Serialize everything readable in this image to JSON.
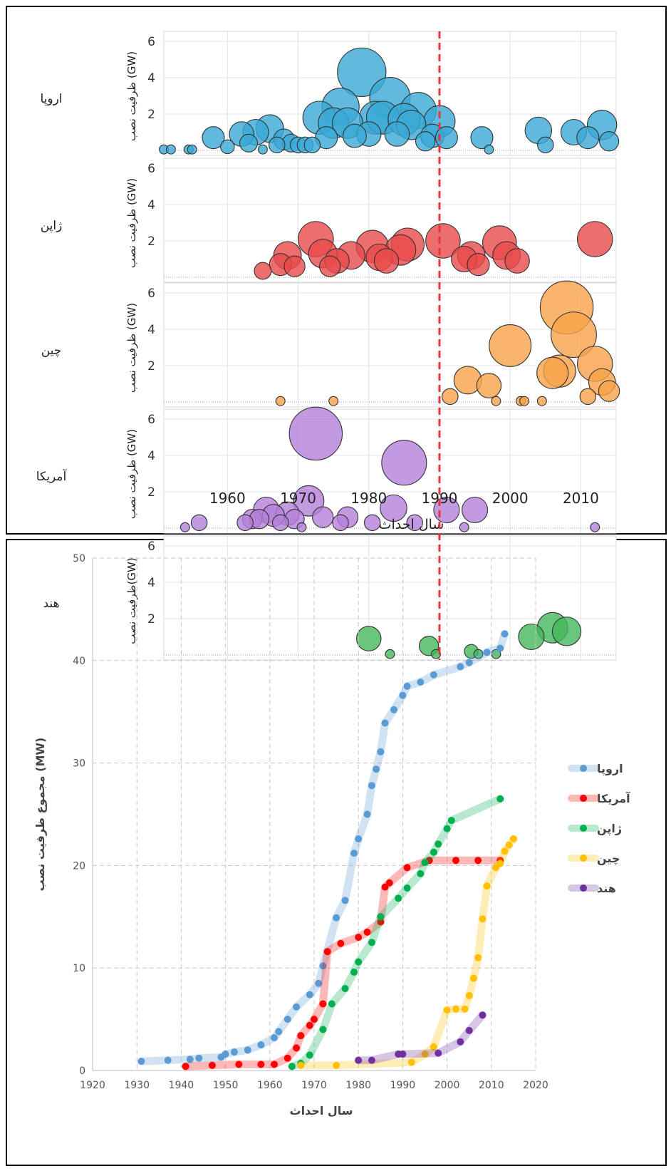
{
  "chart_data": [
    {
      "type": "scatter",
      "xlabel": "سال احداث",
      "x_ticks": [
        1960,
        1970,
        1980,
        1990,
        2000,
        2010
      ],
      "xlim": [
        1951,
        2015
      ],
      "ylim": [
        0,
        6.5
      ],
      "y_ticks": [
        2,
        4,
        6
      ],
      "grid": true,
      "reference_line": {
        "x": 1990,
        "color": "#e8323c",
        "style": "dashed"
      },
      "panels": [
        {
          "name": "اروپا",
          "ylabel": "ظرفیت نصب (GW)",
          "color": "#3aa9d6",
          "points": [
            [
              1951,
              0.05
            ],
            [
              1952,
              0.05
            ],
            [
              1954.5,
              0.05
            ],
            [
              1955,
              0.05
            ],
            [
              1958,
              0.7
            ],
            [
              1960,
              0.2
            ],
            [
              1962,
              0.9
            ],
            [
              1963,
              0.4
            ],
            [
              1964,
              1.0
            ],
            [
              1965,
              0.05
            ],
            [
              1966,
              1.2
            ],
            [
              1967,
              0.3
            ],
            [
              1968,
              0.6
            ],
            [
              1969,
              0.4
            ],
            [
              1970,
              0.3
            ],
            [
              1971,
              0.3
            ],
            [
              1972,
              0.3
            ],
            [
              1973,
              1.8
            ],
            [
              1974,
              0.7
            ],
            [
              1975,
              1.5
            ],
            [
              1976,
              2.4
            ],
            [
              1977,
              1.5
            ],
            [
              1978,
              0.8
            ],
            [
              1979,
              4.3
            ],
            [
              1980,
              0.9
            ],
            [
              1981,
              1.8
            ],
            [
              1982,
              1.8
            ],
            [
              1983,
              2.9
            ],
            [
              1984,
              0.9
            ],
            [
              1985,
              1.7
            ],
            [
              1986,
              1.4
            ],
            [
              1987,
              2.2
            ],
            [
              1988,
              0.5
            ],
            [
              1989,
              0.8
            ],
            [
              1990,
              1.6
            ],
            [
              1991,
              0.7
            ],
            [
              1996,
              0.7
            ],
            [
              1997,
              0.05
            ],
            [
              2004,
              1.1
            ],
            [
              2005,
              0.3
            ],
            [
              2009,
              1.0
            ],
            [
              2011,
              0.7
            ],
            [
              2013,
              1.4
            ],
            [
              2014,
              0.5
            ]
          ]
        },
        {
          "name": "ژاپن",
          "ylabel": "ظرفیت نصب (GW)",
          "color": "#e84a4a",
          "points": [
            [
              1965,
              0.35
            ],
            [
              1967.5,
              0.7
            ],
            [
              1968.5,
              1.2
            ],
            [
              1969.5,
              0.6
            ],
            [
              1972.5,
              2.1
            ],
            [
              1973.5,
              1.3
            ],
            [
              1974.5,
              0.6
            ],
            [
              1975.5,
              0.9
            ],
            [
              1977.5,
              1.2
            ],
            [
              1980.5,
              1.7
            ],
            [
              1981.5,
              1.1
            ],
            [
              1982.5,
              0.9
            ],
            [
              1984.5,
              1.5
            ],
            [
              1985.5,
              1.8
            ],
            [
              1990.5,
              2.0
            ],
            [
              1993.5,
              1.0
            ],
            [
              1994.5,
              1.2
            ],
            [
              1995.5,
              0.7
            ],
            [
              1998.5,
              1.9
            ],
            [
              1999.5,
              1.2
            ],
            [
              2001,
              0.9
            ],
            [
              2012,
              2.1
            ]
          ]
        },
        {
          "name": "چین",
          "ylabel": "ظرفیت نصب (GW)",
          "color": "#f8a248",
          "points": [
            [
              1967.5,
              0.05
            ],
            [
              1975,
              0.05
            ],
            [
              1991.5,
              0.3
            ],
            [
              1994,
              1.2
            ],
            [
              1997,
              0.9
            ],
            [
              1998,
              0.05
            ],
            [
              2000,
              3.1
            ],
            [
              2001.5,
              0.05
            ],
            [
              2002,
              0.05
            ],
            [
              2004.5,
              0.05
            ],
            [
              2006,
              1.6
            ],
            [
              2007,
              1.7
            ],
            [
              2008,
              5.2
            ],
            [
              2009,
              3.7
            ],
            [
              2011,
              0.3
            ],
            [
              2012,
              2.1
            ],
            [
              2013,
              1.1
            ],
            [
              2014,
              0.6
            ]
          ]
        },
        {
          "name": "آمریکا",
          "ylabel": "ظرفیت نصب (GW)",
          "color": "#b47fd9",
          "points": [
            [
              1954,
              0.05
            ],
            [
              1956,
              0.3
            ],
            [
              1962.5,
              0.3
            ],
            [
              1963.5,
              0.5
            ],
            [
              1964.5,
              0.5
            ],
            [
              1965.5,
              1.0
            ],
            [
              1966.5,
              0.7
            ],
            [
              1967.5,
              0.3
            ],
            [
              1968.5,
              0.8
            ],
            [
              1969.5,
              0.5
            ],
            [
              1970.5,
              0.05
            ],
            [
              1971.5,
              1.5
            ],
            [
              1972.5,
              5.2
            ],
            [
              1973.5,
              0.6
            ],
            [
              1976,
              0.3
            ],
            [
              1977,
              0.6
            ],
            [
              1980.5,
              0.3
            ],
            [
              1983.5,
              1.1
            ],
            [
              1985,
              3.6
            ],
            [
              1986.5,
              0.3
            ],
            [
              1991,
              1.0
            ],
            [
              1993.5,
              0.05
            ],
            [
              1995,
              1.0
            ],
            [
              2012,
              0.05
            ]
          ]
        },
        {
          "name": "هند",
          "ylabel": "ظرفیت نصب(GW)",
          "color": "#44b85b",
          "points": [
            [
              1980,
              0.9
            ],
            [
              1983,
              0.05
            ],
            [
              1988.5,
              0.5
            ],
            [
              1989.5,
              0.05
            ],
            [
              1994.5,
              0.2
            ],
            [
              1995.5,
              0.05
            ],
            [
              1998,
              0.05
            ],
            [
              2003,
              1.0
            ],
            [
              2006,
              1.5
            ],
            [
              2008,
              1.3
            ]
          ]
        }
      ]
    },
    {
      "type": "line",
      "ylabel": "مجموع ظرفیت نصب (MW)",
      "xlabel": "سال احداث",
      "xlim": [
        1920,
        2020
      ],
      "ylim": [
        0,
        50
      ],
      "x_ticks": [
        1920,
        1930,
        1940,
        1950,
        1960,
        1970,
        1980,
        1990,
        2000,
        2010,
        2020
      ],
      "y_ticks": [
        0,
        10,
        20,
        30,
        40,
        50
      ],
      "grid": true,
      "legend_position": "right",
      "series": [
        {
          "name": "اروپا",
          "color": "#5b9bd5",
          "points": [
            [
              1931,
              0.9
            ],
            [
              1937,
              1.0
            ],
            [
              1942,
              1.1
            ],
            [
              1944,
              1.2
            ],
            [
              1949,
              1.3
            ],
            [
              1950,
              1.6
            ],
            [
              1952,
              1.8
            ],
            [
              1955,
              2.0
            ],
            [
              1958,
              2.5
            ],
            [
              1961,
              3.2
            ],
            [
              1962,
              3.8
            ],
            [
              1964,
              5.0
            ],
            [
              1966,
              6.2
            ],
            [
              1969,
              7.4
            ],
            [
              1971,
              8.5
            ],
            [
              1972,
              10.2
            ],
            [
              1975,
              14.9
            ],
            [
              1977,
              16.6
            ],
            [
              1979,
              21.2
            ],
            [
              1980,
              22.6
            ],
            [
              1982,
              25.0
            ],
            [
              1983,
              27.8
            ],
            [
              1984,
              29.4
            ],
            [
              1985,
              31.1
            ],
            [
              1986,
              33.9
            ],
            [
              1988,
              35.2
            ],
            [
              1990,
              36.6
            ],
            [
              1991,
              37.5
            ],
            [
              1994,
              37.9
            ],
            [
              1997,
              38.6
            ],
            [
              2003,
              39.4
            ],
            [
              2005,
              39.8
            ],
            [
              2009,
              40.8
            ],
            [
              2012,
              41.2
            ],
            [
              2013,
              42.6
            ]
          ]
        },
        {
          "name": "آمریکا",
          "color": "#ff0000",
          "points": [
            [
              1941,
              0.4
            ],
            [
              1947,
              0.5
            ],
            [
              1953,
              0.6
            ],
            [
              1958,
              0.6
            ],
            [
              1961,
              0.6
            ],
            [
              1964,
              1.2
            ],
            [
              1966,
              2.2
            ],
            [
              1967,
              3.4
            ],
            [
              1969,
              4.4
            ],
            [
              1970,
              5.0
            ],
            [
              1972,
              6.5
            ],
            [
              1973,
              11.6
            ],
            [
              1976,
              12.4
            ],
            [
              1980,
              13.0
            ],
            [
              1982,
              13.5
            ],
            [
              1985,
              14.5
            ],
            [
              1986,
              17.9
            ],
            [
              1987,
              18.3
            ],
            [
              1991,
              19.8
            ],
            [
              1996,
              20.5
            ],
            [
              2002,
              20.5
            ],
            [
              2007,
              20.5
            ],
            [
              2012,
              20.5
            ]
          ]
        },
        {
          "name": "ژاپن",
          "color": "#00b050",
          "points": [
            [
              1965,
              0.4
            ],
            [
              1967,
              0.7
            ],
            [
              1969,
              1.5
            ],
            [
              1972,
              4.0
            ],
            [
              1974,
              6.5
            ],
            [
              1977,
              8.0
            ],
            [
              1979,
              9.6
            ],
            [
              1980,
              10.6
            ],
            [
              1983,
              12.5
            ],
            [
              1985,
              15.0
            ],
            [
              1989,
              16.8
            ],
            [
              1991,
              17.8
            ],
            [
              1994,
              19.2
            ],
            [
              1995,
              20.3
            ],
            [
              1997,
              21.3
            ],
            [
              1998,
              22.1
            ],
            [
              2000,
              23.6
            ],
            [
              2001,
              24.4
            ],
            [
              2012,
              26.5
            ]
          ]
        },
        {
          "name": "چین",
          "color": "#ffc000",
          "points": [
            [
              1967,
              0.5
            ],
            [
              1975,
              0.5
            ],
            [
              1992,
              0.8
            ],
            [
              1995,
              1.6
            ],
            [
              1997,
              2.3
            ],
            [
              2000,
              5.9
            ],
            [
              2002,
              6.0
            ],
            [
              2004,
              6.0
            ],
            [
              2005,
              7.3
            ],
            [
              2006,
              9.0
            ],
            [
              2007,
              11.0
            ],
            [
              2008,
              14.8
            ],
            [
              2009,
              18.0
            ],
            [
              2011,
              19.8
            ],
            [
              2012,
              20.2
            ],
            [
              2013,
              21.4
            ],
            [
              2014,
              22.0
            ],
            [
              2015,
              22.6
            ]
          ]
        },
        {
          "name": "هند",
          "color": "#7030a0",
          "points": [
            [
              1980,
              1.0
            ],
            [
              1983,
              1.0
            ],
            [
              1989,
              1.6
            ],
            [
              1990,
              1.6
            ],
            [
              1998,
              1.7
            ],
            [
              2003,
              2.8
            ],
            [
              2005,
              3.9
            ],
            [
              2008,
              5.4
            ]
          ]
        }
      ]
    }
  ]
}
